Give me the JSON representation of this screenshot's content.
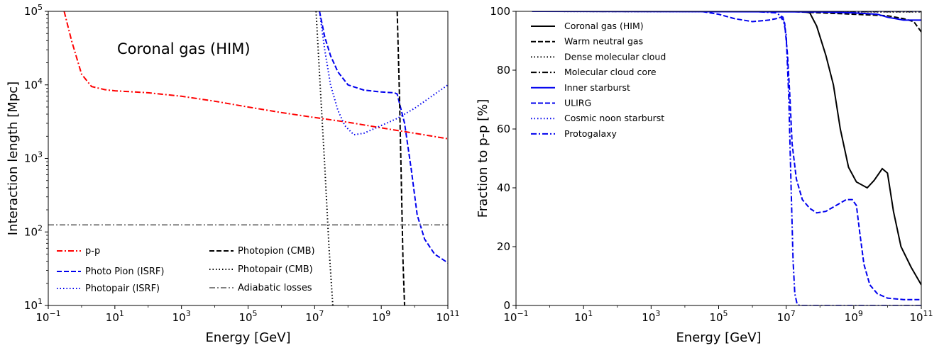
{
  "chart_data": [
    {
      "type": "line",
      "xlabel": "Energy [GeV]",
      "ylabel": "Interaction length [Mpc]",
      "x_scale": "log",
      "y_scale": "log",
      "xlim": [
        0.1,
        100000000000
      ],
      "ylim": [
        10,
        100000
      ],
      "x_ticks": [
        {
          "base": "10",
          "exp": "−1",
          "value": 0.1
        },
        {
          "base": "10",
          "exp": "1",
          "value": 10
        },
        {
          "base": "10",
          "exp": "3",
          "value": 1000
        },
        {
          "base": "10",
          "exp": "5",
          "value": 100000
        },
        {
          "base": "10",
          "exp": "7",
          "value": 10000000
        },
        {
          "base": "10",
          "exp": "9",
          "value": 1000000000
        },
        {
          "base": "10",
          "exp": "11",
          "value": 100000000000
        }
      ],
      "y_ticks": [
        {
          "base": "10",
          "exp": "1",
          "value": 10
        },
        {
          "base": "10",
          "exp": "2",
          "value": 100
        },
        {
          "base": "10",
          "exp": "3",
          "value": 1000
        },
        {
          "base": "10",
          "exp": "4",
          "value": 10000
        },
        {
          "base": "10",
          "exp": "5",
          "value": 100000
        }
      ],
      "annotation": "Coronal gas (HIM)",
      "grid": false,
      "legend_position": "lower-center",
      "series": [
        {
          "name": "p-p",
          "color": "#ff0000",
          "style": "dashdot",
          "x": [
            0.3,
            0.5,
            1,
            2,
            5,
            10,
            100,
            1000,
            10000,
            100000,
            1000000,
            10000000,
            100000000,
            1000000000,
            10000000000,
            100000000000
          ],
          "y": [
            100000,
            40000,
            14000,
            9500,
            8600,
            8300,
            7800,
            7000,
            6000,
            5000,
            4200,
            3600,
            3100,
            2600,
            2200,
            1850
          ]
        },
        {
          "name": "Photo Pion (ISRF)",
          "color": "#0000ee",
          "style": "dashed",
          "x": [
            14000000,
            20000000,
            30000000,
            50000000,
            100000000,
            300000000,
            1000000000,
            2500000000,
            3000000000,
            5000000000,
            8000000000,
            12000000000,
            20000000000,
            40000000000,
            100000000000
          ],
          "y": [
            100000,
            45000,
            25000,
            15000,
            10000,
            8500,
            8000,
            7800,
            7500,
            3000,
            700,
            170,
            80,
            50,
            38
          ]
        },
        {
          "name": "Photopair (ISRF)",
          "color": "#0000ee",
          "style": "dotted",
          "x": [
            14000000,
            20000000,
            30000000,
            50000000,
            80000000,
            150000000,
            300000000,
            1000000000,
            3000000000,
            10000000000,
            100000000000
          ],
          "y": [
            100000,
            30000,
            10000,
            4500,
            2800,
            2100,
            2200,
            2800,
            3500,
            4800,
            10000
          ]
        },
        {
          "name": "Photopion (CMB)",
          "color": "#000000",
          "style": "dashed",
          "x": [
            3000000000,
            3500000000,
            4000000000,
            4500000000,
            5000000000
          ],
          "y": [
            100000,
            8000,
            500,
            40,
            10
          ]
        },
        {
          "name": "Photopair (CMB)",
          "color": "#000000",
          "style": "dotted",
          "x": [
            11000000,
            15000000,
            20000000,
            27000000,
            35000000
          ],
          "y": [
            100000,
            8000,
            800,
            60,
            10
          ]
        },
        {
          "name": "Adiabatic losses",
          "color": "#808080",
          "style": "dashdot",
          "x": [
            0.1,
            100000000000
          ],
          "y": [
            125,
            125
          ]
        }
      ]
    },
    {
      "type": "line",
      "xlabel": "Energy [GeV]",
      "ylabel": "Fraction to p-p  [%]",
      "x_scale": "log",
      "xlim": [
        0.1,
        100000000000
      ],
      "ylim": [
        0,
        100
      ],
      "x_ticks": [
        {
          "base": "10",
          "exp": "−1",
          "value": 0.1
        },
        {
          "base": "10",
          "exp": "1",
          "value": 10
        },
        {
          "base": "10",
          "exp": "3",
          "value": 1000
        },
        {
          "base": "10",
          "exp": "5",
          "value": 100000
        },
        {
          "base": "10",
          "exp": "7",
          "value": 10000000
        },
        {
          "base": "10",
          "exp": "9",
          "value": 1000000000
        },
        {
          "base": "10",
          "exp": "11",
          "value": 100000000000
        }
      ],
      "y_ticks": [
        {
          "label": "0",
          "value": 0
        },
        {
          "label": "20",
          "value": 20
        },
        {
          "label": "40",
          "value": 40
        },
        {
          "label": "60",
          "value": 60
        },
        {
          "label": "80",
          "value": 80
        },
        {
          "label": "100",
          "value": 100
        }
      ],
      "grid": false,
      "legend_position": "upper-left",
      "series": [
        {
          "name": "Coronal gas (HIM)",
          "color": "#000000",
          "style": "solid",
          "x": [
            0.3,
            10000000,
            30000000,
            50000000,
            80000000,
            150000000,
            250000000,
            400000000,
            700000000,
            1200000000,
            2500000000,
            4000000000,
            7000000000,
            10000000000,
            15000000000,
            25000000000,
            50000000000,
            100000000000
          ],
          "y": [
            100,
            100,
            100,
            99.5,
            95,
            85,
            75,
            60,
            47,
            42,
            40,
            42.5,
            46.5,
            45,
            32,
            20,
            13,
            7
          ]
        },
        {
          "name": "Warm neutral gas",
          "color": "#000000",
          "style": "dashed",
          "x": [
            0.3,
            10000000,
            100000000,
            1000000000,
            10000000000,
            30000000000,
            60000000000,
            100000000000
          ],
          "y": [
            100,
            100,
            99.5,
            99,
            98.5,
            97.5,
            96.5,
            93
          ]
        },
        {
          "name": "Dense molecular cloud",
          "color": "#000000",
          "style": "dotted",
          "x": [
            0.3,
            100000000000
          ],
          "y": [
            100,
            99.8
          ]
        },
        {
          "name": "Molecular cloud core",
          "color": "#000000",
          "style": "dashdot",
          "x": [
            0.3,
            100000000000
          ],
          "y": [
            100,
            99.9
          ]
        },
        {
          "name": "Inner starburst",
          "color": "#0000ee",
          "style": "solid",
          "x": [
            0.3,
            100000000,
            1000000000,
            5000000000,
            10000000000,
            30000000000,
            100000000000
          ],
          "y": [
            100,
            99.8,
            99.5,
            99,
            98,
            97,
            97
          ]
        },
        {
          "name": "ULIRG",
          "color": "#0000ee",
          "style": "dashed",
          "x": [
            0.3,
            30000,
            100000,
            300000,
            1000000,
            3000000,
            5000000,
            7000000,
            9000000,
            11000000,
            13000000,
            15000000,
            20000000,
            30000000,
            50000000,
            80000000,
            150000000,
            300000000,
            600000000,
            900000000,
            1200000000,
            1500000000,
            2000000000,
            3000000000,
            5000000000,
            10000000000,
            30000000000,
            100000000000
          ],
          "y": [
            100,
            100,
            99,
            97.5,
            96.5,
            97,
            97.5,
            98,
            96,
            85,
            70,
            55,
            43,
            36,
            33,
            31.5,
            32,
            34,
            36,
            36,
            34,
            25,
            14,
            7,
            4,
            2.5,
            2,
            2
          ]
        },
        {
          "name": "Cosmic noon starburst",
          "color": "#0000ee",
          "style": "dotted",
          "x": [
            0.3,
            100000000000
          ],
          "y": [
            100,
            100
          ]
        },
        {
          "name": "Protogalaxy",
          "color": "#0000ee",
          "style": "dashdot",
          "x": [
            0.3,
            1000000,
            5000000,
            8000000,
            10000000,
            12000000,
            14000000,
            16000000,
            18000000,
            21000000,
            25000000,
            100000000000
          ],
          "y": [
            100,
            100,
            99.5,
            98,
            92,
            70,
            40,
            15,
            4,
            0.5,
            0,
            0
          ]
        }
      ]
    }
  ]
}
